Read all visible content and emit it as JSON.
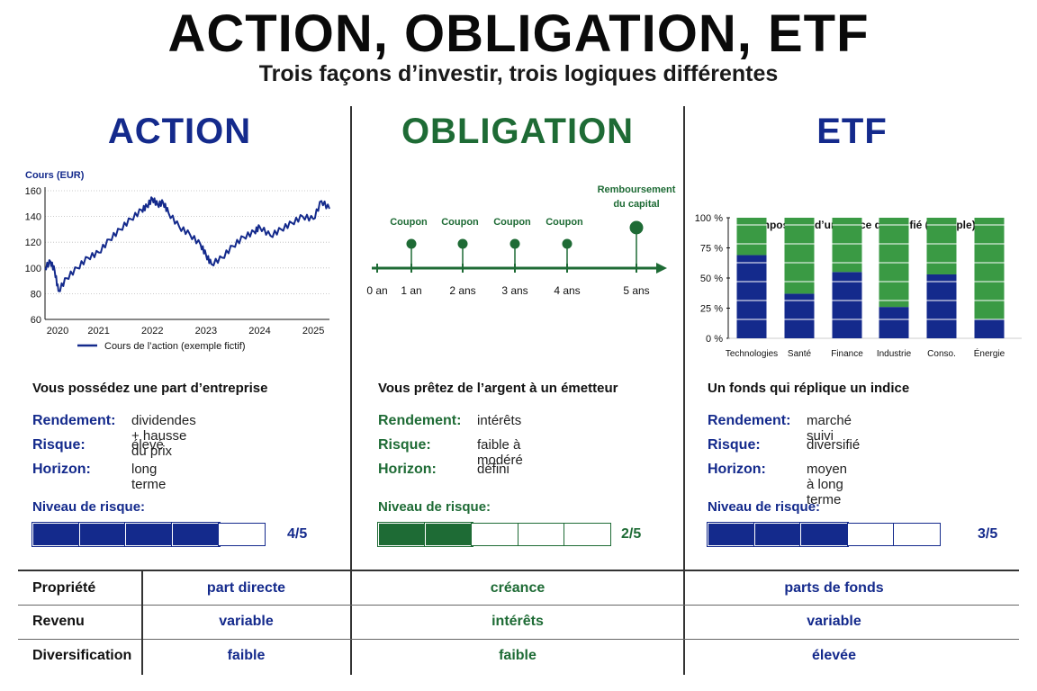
{
  "header": {
    "title": "ACTION, OBLIGATION, ETF",
    "subtitle": "Trois façons d’investir, trois logiques différentes"
  },
  "colors": {
    "blue": "#142a8c",
    "green": "#1e6b35"
  },
  "action": {
    "heading": "ACTION",
    "statement": "Vous possédez une part d’entreprise",
    "rendement_label": "Rendement:",
    "rendement_value": "dividendes + hausse du prix",
    "risque_label": "Risque:",
    "risque_value": "élevé",
    "horizon_label": "Horizon:",
    "horizon_value": "long terme",
    "risk_label": "Niveau de risque:",
    "risk_level": 4,
    "risk_max": 5,
    "risk_text": "4/5"
  },
  "obligation": {
    "heading": "OBLIGATION",
    "statement": "Vous prêtez de l’argent à un émetteur",
    "rendement_label": "Rendement:",
    "rendement_value": "intérêts",
    "risque_label": "Risque:",
    "risque_value": "faible à modéré",
    "horizon_label": "Horizon:",
    "horizon_value": "défini",
    "risk_label": "Niveau de risque:",
    "risk_level": 2,
    "risk_max": 5,
    "risk_text": "2/5",
    "timeline": {
      "ticks": [
        "0 an",
        "1 an",
        "2 ans",
        "3 ans",
        "4 ans",
        "5 ans"
      ],
      "coupon_label": "Coupon",
      "final_label_line1": "Remboursement",
      "final_label_line2": "du capital"
    }
  },
  "etf": {
    "heading": "ETF",
    "statement": "Un fonds qui réplique un indice",
    "rendement_label": "Rendement:",
    "rendement_value": "marché suivi",
    "risque_label": "Risque:",
    "risque_value": "diversifié",
    "horizon_label": "Horizon:",
    "horizon_value": "moyen à long terme",
    "risk_label": "Niveau de risque:",
    "risk_level": 3,
    "risk_max": 5,
    "risk_text": "3/5"
  },
  "table": {
    "rows": [
      {
        "label": "Propriété",
        "action": "part directe",
        "obligation": "créance",
        "etf": "parts de fonds"
      },
      {
        "label": "Revenu",
        "action": "variable",
        "obligation": "intérêts",
        "etf": "variable"
      },
      {
        "label": "Diversification",
        "action": "faible",
        "obligation": "faible",
        "etf": "élevée"
      }
    ]
  },
  "chart_data": [
    {
      "type": "line",
      "title": "",
      "ylabel": "Cours (EUR)",
      "xlabel": "",
      "legend": "Cours de l’action (exemple fictif)",
      "legend_position": "bottom",
      "x_ticks": [
        "2020",
        "2021",
        "2022",
        "2023",
        "2024",
        "2025"
      ],
      "y_ticks": [
        60,
        80,
        100,
        120,
        140,
        160
      ],
      "ylim": [
        60,
        160
      ],
      "xlim": [
        2020,
        2025.3
      ],
      "grid": true,
      "x": [
        2020.0,
        2020.1,
        2020.18,
        2020.25,
        2020.4,
        2020.6,
        2020.8,
        2021.0,
        2021.2,
        2021.4,
        2021.6,
        2021.8,
        2021.9,
        2022.0,
        2022.1,
        2022.2,
        2022.3,
        2022.5,
        2022.7,
        2022.9,
        2023.0,
        2023.1,
        2023.3,
        2023.5,
        2023.7,
        2023.9,
        2024.0,
        2024.2,
        2024.4,
        2024.6,
        2024.8,
        2025.0,
        2025.15,
        2025.3
      ],
      "y": [
        100,
        105,
        98,
        82,
        92,
        100,
        108,
        112,
        122,
        130,
        138,
        145,
        148,
        154,
        149,
        151,
        143,
        132,
        126,
        118,
        110,
        103,
        108,
        117,
        124,
        128,
        132,
        125,
        130,
        135,
        140,
        138,
        152,
        146
      ]
    },
    {
      "type": "bar",
      "stacked": true,
      "title": "Composition d’un indice diversifié (exemple)",
      "categories": [
        "Technologies",
        "Santé",
        "Finance",
        "Industrie",
        "Conso. discrétionnaire",
        "Énergie"
      ],
      "y_ticks": [
        "0 %",
        "25 %",
        "50 %",
        "75 %",
        "100 %"
      ],
      "ylim": [
        0,
        100
      ],
      "series": [
        {
          "values": [
            69,
            37,
            55,
            26,
            53,
            16
          ]
        },
        {
          "values": [
            31,
            63,
            45,
            74,
            47,
            84
          ]
        }
      ]
    }
  ]
}
